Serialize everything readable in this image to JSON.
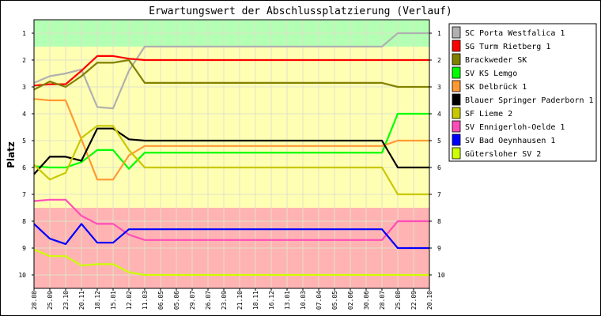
{
  "chart_data": {
    "type": "line",
    "title": "Erwartungswert der Abschlussplatzierung (Verlauf)",
    "ylabel": "Platz",
    "xlabel": "",
    "ylim": [
      0.5,
      10.5
    ],
    "y_reversed": true,
    "yticks": [
      1,
      2,
      3,
      4,
      5,
      6,
      7,
      8,
      9,
      10
    ],
    "x": [
      "28.08",
      "25.09",
      "23.10",
      "20.11",
      "18.12",
      "15.01",
      "12.02",
      "11.03",
      "06.05",
      "05.06",
      "29.07",
      "26.07",
      "23.09",
      "21.10",
      "18.11",
      "16.12",
      "13.01",
      "10.03",
      "07.04",
      "05.05",
      "02.06",
      "30.06",
      "28.07",
      "25.08",
      "22.09",
      "20.10"
    ],
    "bands": [
      {
        "from": 0.5,
        "to": 1.5,
        "color": "#b3ffb3"
      },
      {
        "from": 1.5,
        "to": 7.5,
        "color": "#ffffb3"
      },
      {
        "from": 7.5,
        "to": 10.5,
        "color": "#ffb3b3"
      }
    ],
    "grid": true,
    "legend_position": "right",
    "series": [
      {
        "name": "SC Porta Westfalica 1",
        "color": "#b0b0b0",
        "values": [
          2.85,
          2.6,
          2.5,
          2.35,
          3.75,
          3.8,
          2.4,
          1.5,
          1.5,
          1.5,
          1.5,
          1.5,
          1.5,
          1.5,
          1.5,
          1.5,
          1.5,
          1.5,
          1.5,
          1.5,
          1.5,
          1.5,
          1.5,
          1.0,
          1.0,
          1.0
        ]
      },
      {
        "name": "SG Turm Rietberg 1",
        "color": "#ff0000",
        "values": [
          2.95,
          2.9,
          2.9,
          2.4,
          1.85,
          1.85,
          1.95,
          2.0,
          2.0,
          2.0,
          2.0,
          2.0,
          2.0,
          2.0,
          2.0,
          2.0,
          2.0,
          2.0,
          2.0,
          2.0,
          2.0,
          2.0,
          2.0,
          2.0,
          2.0,
          2.0
        ]
      },
      {
        "name": "Brackweder SK",
        "color": "#808000",
        "values": [
          3.1,
          2.8,
          3.0,
          2.6,
          2.1,
          2.1,
          2.0,
          2.85,
          2.85,
          2.85,
          2.85,
          2.85,
          2.85,
          2.85,
          2.85,
          2.85,
          2.85,
          2.85,
          2.85,
          2.85,
          2.85,
          2.85,
          2.85,
          3.0,
          3.0,
          3.0
        ]
      },
      {
        "name": "SV KS Lemgo",
        "color": "#00ff00",
        "values": [
          5.95,
          6.0,
          6.0,
          5.8,
          5.35,
          5.35,
          6.05,
          5.45,
          5.45,
          5.45,
          5.45,
          5.45,
          5.45,
          5.45,
          5.45,
          5.45,
          5.45,
          5.45,
          5.45,
          5.45,
          5.45,
          5.45,
          5.45,
          4.0,
          4.0,
          4.0
        ]
      },
      {
        "name": "SK Delbrück 1",
        "color": "#ff9933",
        "values": [
          3.45,
          3.5,
          3.5,
          4.95,
          6.45,
          6.45,
          5.55,
          5.2,
          5.2,
          5.2,
          5.2,
          5.2,
          5.2,
          5.2,
          5.2,
          5.2,
          5.2,
          5.2,
          5.2,
          5.2,
          5.2,
          5.2,
          5.2,
          5.0,
          5.0,
          5.0
        ]
      },
      {
        "name": "Blauer Springer Paderborn 1",
        "color": "#000000",
        "values": [
          6.25,
          5.6,
          5.6,
          5.75,
          4.55,
          4.55,
          4.95,
          5.0,
          5.0,
          5.0,
          5.0,
          5.0,
          5.0,
          5.0,
          5.0,
          5.0,
          5.0,
          5.0,
          5.0,
          5.0,
          5.0,
          5.0,
          5.0,
          6.0,
          6.0,
          6.0
        ]
      },
      {
        "name": "SF Lieme 2",
        "color": "#c8c800",
        "values": [
          5.9,
          6.45,
          6.2,
          4.9,
          4.45,
          4.45,
          5.35,
          6.0,
          6.0,
          6.0,
          6.0,
          6.0,
          6.0,
          6.0,
          6.0,
          6.0,
          6.0,
          6.0,
          6.0,
          6.0,
          6.0,
          6.0,
          6.0,
          7.0,
          7.0,
          7.0
        ]
      },
      {
        "name": "SV Ennigerloh-Oelde 1",
        "color": "#ff4db8",
        "values": [
          7.25,
          7.2,
          7.2,
          7.8,
          8.1,
          8.1,
          8.5,
          8.7,
          8.7,
          8.7,
          8.7,
          8.7,
          8.7,
          8.7,
          8.7,
          8.7,
          8.7,
          8.7,
          8.7,
          8.7,
          8.7,
          8.7,
          8.7,
          8.0,
          8.0,
          8.0
        ]
      },
      {
        "name": "SV Bad Oeynhausen 1",
        "color": "#0000ff",
        "values": [
          8.1,
          8.65,
          8.85,
          8.1,
          8.8,
          8.8,
          8.3,
          8.3,
          8.3,
          8.3,
          8.3,
          8.3,
          8.3,
          8.3,
          8.3,
          8.3,
          8.3,
          8.3,
          8.3,
          8.3,
          8.3,
          8.3,
          8.3,
          9.0,
          9.0,
          9.0
        ]
      },
      {
        "name": "Gütersloher SV 2",
        "color": "#ccff00",
        "values": [
          9.05,
          9.3,
          9.3,
          9.65,
          9.6,
          9.6,
          9.9,
          10.0,
          10.0,
          10.0,
          10.0,
          10.0,
          10.0,
          10.0,
          10.0,
          10.0,
          10.0,
          10.0,
          10.0,
          10.0,
          10.0,
          10.0,
          10.0,
          10.0,
          10.0,
          10.0
        ]
      }
    ]
  }
}
